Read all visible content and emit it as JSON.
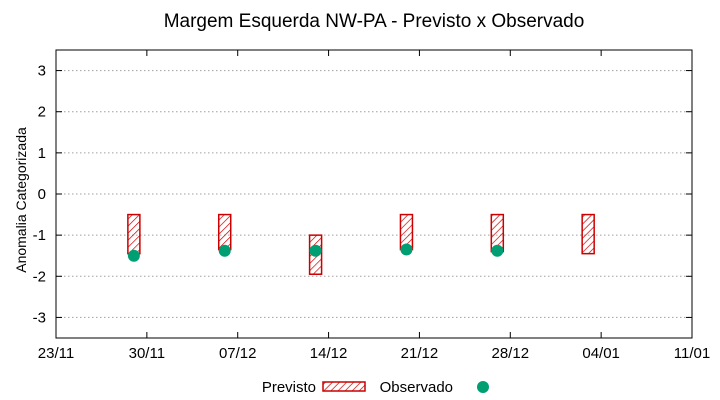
{
  "chart_data": {
    "type": "bar",
    "title": "Margem Esquerda NW-PA - Previsto x Observado",
    "ylabel": "Anomalia Categorizada",
    "xlabel": "",
    "ylim": [
      -3.5,
      3.5
    ],
    "yticks": [
      -3,
      -2,
      -1,
      0,
      1,
      2,
      3
    ],
    "xlim": [
      "2020-11-23",
      "2021-01-11"
    ],
    "xticks": [
      "23/11",
      "30/11",
      "07/12",
      "14/12",
      "21/12",
      "28/12",
      "04/01",
      "11/01"
    ],
    "grid": true,
    "legend_position": "bottom",
    "series": [
      {
        "name": "Previsto",
        "kind": "hatched-bar",
        "color": "#cc0000",
        "points": [
          {
            "x": "2020-11-29",
            "low": -1.45,
            "high": -0.5
          },
          {
            "x": "2020-12-06",
            "low": -1.35,
            "high": -0.5
          },
          {
            "x": "2020-12-13",
            "low": -1.95,
            "high": -1.0
          },
          {
            "x": "2020-12-20",
            "low": -1.35,
            "high": -0.5
          },
          {
            "x": "2020-12-27",
            "low": -1.4,
            "high": -0.5
          },
          {
            "x": "2021-01-03",
            "low": -1.45,
            "high": -0.5
          }
        ]
      },
      {
        "name": "Observado",
        "kind": "point",
        "color": "#009e73",
        "points": [
          {
            "x": "2020-11-29",
            "y": -1.5
          },
          {
            "x": "2020-12-06",
            "y": -1.38
          },
          {
            "x": "2020-12-13",
            "y": -1.38
          },
          {
            "x": "2020-12-20",
            "y": -1.35
          },
          {
            "x": "2020-12-27",
            "y": -1.38
          }
        ]
      }
    ]
  }
}
